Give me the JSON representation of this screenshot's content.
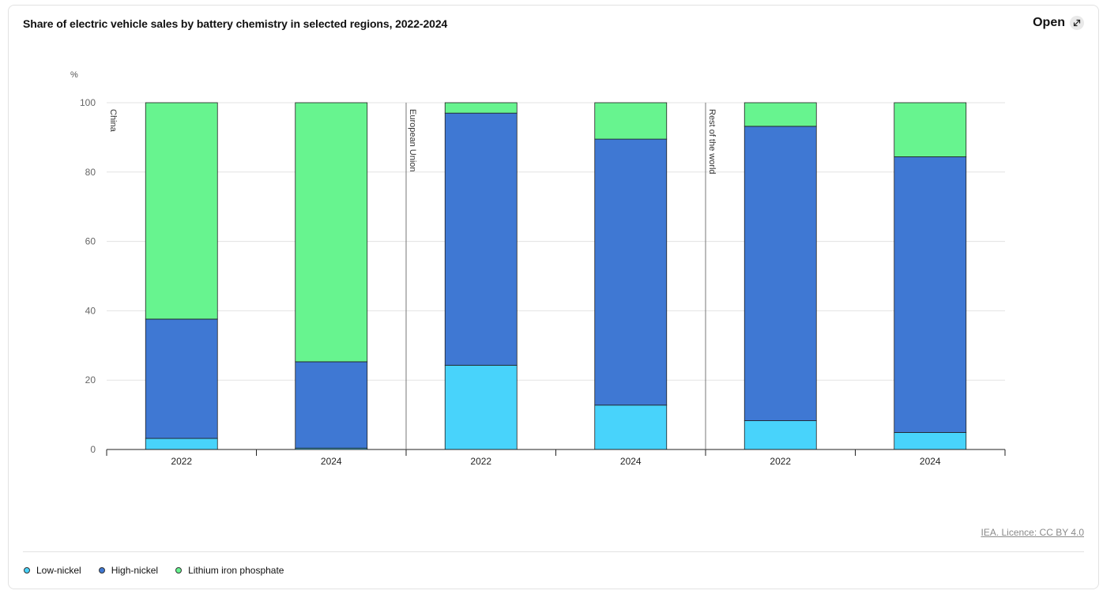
{
  "header": {
    "title": "Share of electric vehicle sales by battery chemistry in selected regions, 2022-2024",
    "open_label": "Open",
    "open_icon": "expand-arrow-icon"
  },
  "footer": {
    "credit": "IEA. Licence: CC BY 4.0"
  },
  "colors": {
    "Low-nickel": "#48d3fb",
    "High-nickel": "#3f78d3",
    "Lithium iron phosphate": "#67f48f"
  },
  "chart_data": {
    "type": "bar",
    "stacked": true,
    "ylabel": "%",
    "ylim": [
      0,
      100
    ],
    "yticks": [
      0,
      20,
      40,
      60,
      80,
      100
    ],
    "grid": true,
    "legend_position": "bottom-left",
    "groups": [
      {
        "name": "China",
        "categories": [
          "2022",
          "2024"
        ]
      },
      {
        "name": "European Union",
        "categories": [
          "2022",
          "2024"
        ]
      },
      {
        "name": "Rest of the world",
        "categories": [
          "2022",
          "2024"
        ]
      }
    ],
    "categories": [
      "2022",
      "2024",
      "2022",
      "2024",
      "2022",
      "2024"
    ],
    "series": [
      {
        "name": "Low-nickel",
        "values": [
          3.2,
          0.4,
          24.3,
          12.8,
          8.3,
          4.9
        ]
      },
      {
        "name": "High-nickel",
        "values": [
          34.4,
          24.9,
          72.7,
          76.7,
          84.9,
          79.5
        ]
      },
      {
        "name": "Lithium iron phosphate",
        "values": [
          62.4,
          74.7,
          3.0,
          10.5,
          6.8,
          15.6
        ]
      }
    ]
  }
}
